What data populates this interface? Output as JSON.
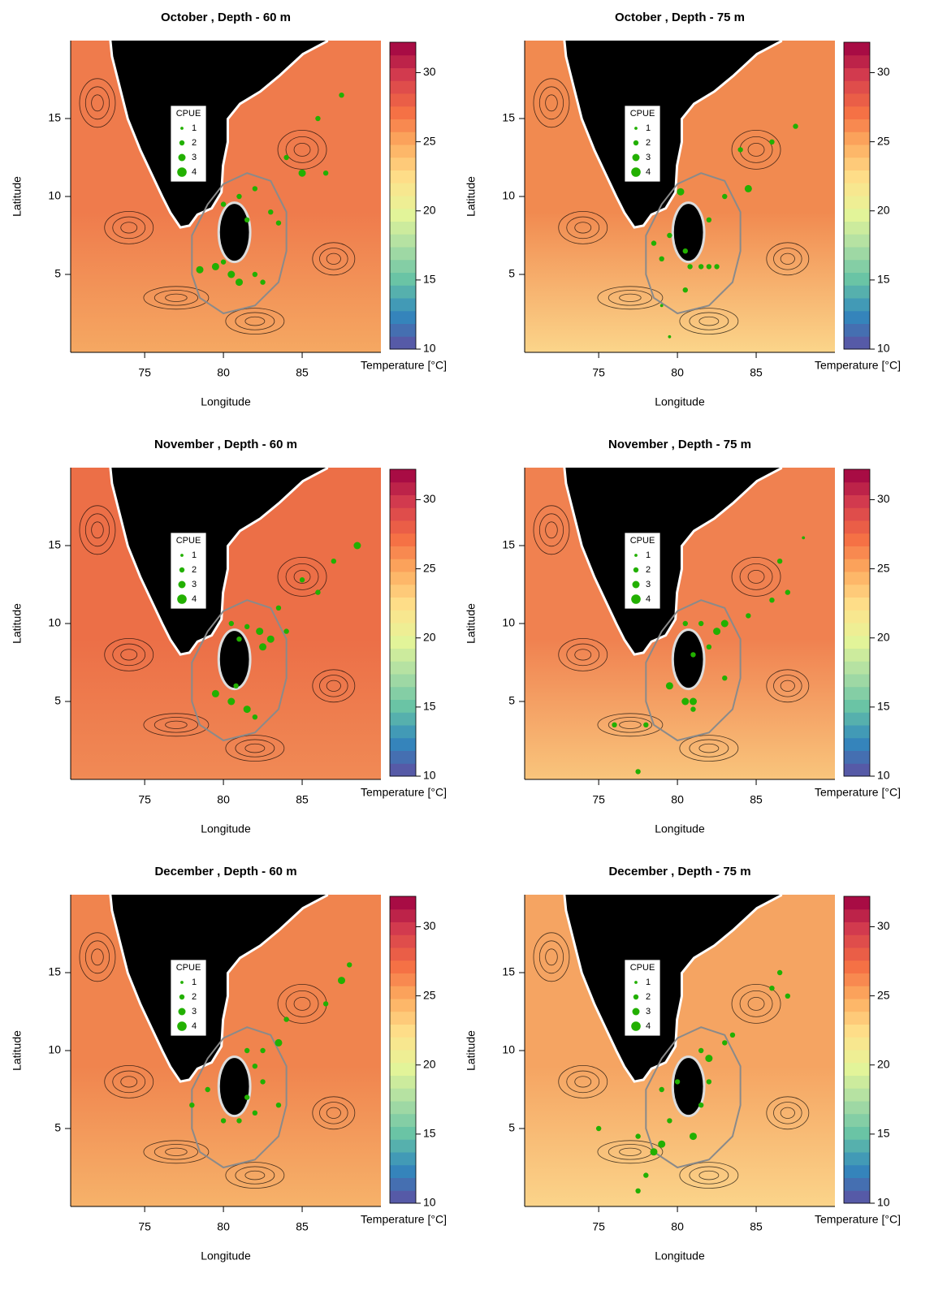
{
  "chart_data": [
    {
      "type": "map",
      "title": "October , Depth - 60 m",
      "xlabel": "Longitude",
      "ylabel": "Latitude",
      "xlim": [
        70.3,
        90
      ],
      "ylim": [
        0,
        20
      ],
      "xticks": [
        75,
        80,
        85
      ],
      "yticks": [
        5,
        10,
        15
      ],
      "colorbar": {
        "label": "Temperature [°C]",
        "lim": [
          10,
          32.2
        ],
        "ticks": [
          10,
          15,
          20,
          25,
          30
        ],
        "colors": [
          "#5e4fa2",
          "#3288bd",
          "#66c2a5",
          "#abdda4",
          "#e6f598",
          "#fee08b",
          "#fdae61",
          "#f46d43",
          "#d53e4f",
          "#9e0142"
        ]
      },
      "field_colors": [
        "#ef7b4c",
        "#f5a862"
      ],
      "point_color": "#22b000",
      "legend": {
        "title": "CPUE",
        "labels": [
          1,
          2,
          3,
          4
        ]
      },
      "points": {
        "lon": [
          80,
          81,
          82,
          83,
          81.5,
          78.5,
          79.5,
          80.5,
          81,
          80,
          82,
          83.5,
          85,
          86.5,
          84,
          87.5,
          86,
          82.5
        ],
        "lat": [
          9.5,
          10,
          10.5,
          9,
          8.5,
          5.3,
          5.5,
          5,
          4.5,
          5.8,
          5,
          8.3,
          11.5,
          11.5,
          12.5,
          16.5,
          15,
          4.5
        ],
        "cpue": [
          2,
          2,
          2,
          2,
          2,
          3,
          3,
          3,
          3,
          2,
          2,
          2,
          3,
          2,
          2,
          2,
          2,
          2
        ]
      }
    },
    {
      "type": "map",
      "title": "October , Depth - 75 m",
      "xlabel": "Longitude",
      "ylabel": "Latitude",
      "xlim": [
        70.3,
        90
      ],
      "ylim": [
        0,
        20
      ],
      "xticks": [
        75,
        80,
        85
      ],
      "yticks": [
        5,
        10,
        15
      ],
      "colorbar": {
        "label": "Temperature [°C]",
        "lim": [
          10,
          32.2
        ],
        "ticks": [
          10,
          15,
          20,
          25,
          30
        ],
        "colors": [
          "#5e4fa2",
          "#3288bd",
          "#66c2a5",
          "#abdda4",
          "#e6f598",
          "#fee08b",
          "#fdae61",
          "#f46d43",
          "#d53e4f",
          "#9e0142"
        ]
      },
      "field_colors": [
        "#f18a50",
        "#fbd58a"
      ],
      "point_color": "#22b000",
      "legend": {
        "title": "CPUE",
        "labels": [
          1,
          2,
          3,
          4
        ]
      },
      "points": {
        "lon": [
          80.2,
          80.5,
          80.8,
          81.5,
          82,
          82.5,
          79,
          79.5,
          80.5,
          79,
          79.5,
          82,
          83,
          84.5,
          86,
          87.5,
          84,
          78.5
        ],
        "lat": [
          10.3,
          6.5,
          5.5,
          5.5,
          5.5,
          5.5,
          6,
          7.5,
          4,
          3,
          1,
          8.5,
          10,
          10.5,
          13.5,
          14.5,
          13,
          7
        ],
        "cpue": [
          3,
          2,
          2,
          2,
          2,
          2,
          2,
          2,
          2,
          1,
          1,
          2,
          2,
          3,
          2,
          2,
          2,
          2
        ]
      }
    },
    {
      "type": "map",
      "title": "November , Depth - 60 m",
      "xlabel": "Longitude",
      "ylabel": "Latitude",
      "xlim": [
        70.3,
        90
      ],
      "ylim": [
        0,
        20
      ],
      "xticks": [
        75,
        80,
        85
      ],
      "yticks": [
        5,
        10,
        15
      ],
      "colorbar": {
        "label": "Temperature [°C]",
        "lim": [
          10,
          32.2
        ],
        "ticks": [
          10,
          15,
          20,
          25,
          30
        ],
        "colors": [
          "#5e4fa2",
          "#3288bd",
          "#66c2a5",
          "#abdda4",
          "#e6f598",
          "#fee08b",
          "#fdae61",
          "#f46d43",
          "#d53e4f",
          "#9e0142"
        ]
      },
      "field_colors": [
        "#ec6f47",
        "#f08a55"
      ],
      "point_color": "#22b000",
      "legend": {
        "title": "CPUE",
        "labels": [
          1,
          2,
          3,
          4
        ]
      },
      "points": {
        "lon": [
          80.5,
          81.5,
          82.3,
          83,
          82.5,
          81,
          79.5,
          80.5,
          81.5,
          80.8,
          84,
          86,
          87,
          88.5,
          85,
          83.5,
          82
        ],
        "lat": [
          10,
          9.8,
          9.5,
          9,
          8.5,
          9,
          5.5,
          5,
          4.5,
          6,
          9.5,
          12,
          14,
          15,
          12.8,
          11,
          4
        ],
        "cpue": [
          2,
          2,
          3,
          3,
          3,
          2,
          3,
          3,
          3,
          2,
          2,
          2,
          2,
          3,
          2,
          2,
          2
        ]
      }
    },
    {
      "type": "map",
      "title": "November , Depth - 75 m",
      "xlabel": "Longitude",
      "ylabel": "Latitude",
      "xlim": [
        70.3,
        90
      ],
      "ylim": [
        0,
        20
      ],
      "xticks": [
        75,
        80,
        85
      ],
      "yticks": [
        5,
        10,
        15
      ],
      "colorbar": {
        "label": "Temperature [°C]",
        "lim": [
          10,
          32.2
        ],
        "ticks": [
          10,
          15,
          20,
          25,
          30
        ],
        "colors": [
          "#5e4fa2",
          "#3288bd",
          "#66c2a5",
          "#abdda4",
          "#e6f598",
          "#fee08b",
          "#fdae61",
          "#f46d43",
          "#d53e4f",
          "#9e0142"
        ]
      },
      "field_colors": [
        "#f08150",
        "#f9c57c"
      ],
      "point_color": "#22b000",
      "legend": {
        "title": "CPUE",
        "labels": [
          1,
          2,
          3,
          4
        ]
      },
      "points": {
        "lon": [
          80.5,
          81.5,
          82.5,
          83,
          82,
          81,
          79.5,
          80.5,
          81,
          83,
          81,
          84.5,
          86,
          87,
          86.5,
          88,
          77.5,
          76,
          78
        ],
        "lat": [
          10,
          10,
          9.5,
          10,
          8.5,
          8,
          6,
          5,
          5,
          6.5,
          4.5,
          10.5,
          11.5,
          12,
          14,
          15.5,
          0.5,
          3.5,
          3.5
        ],
        "cpue": [
          2,
          2,
          3,
          3,
          2,
          2,
          3,
          3,
          3,
          2,
          2,
          2,
          2,
          2,
          2,
          1,
          2,
          2,
          2
        ]
      }
    },
    {
      "type": "map",
      "title": "December , Depth - 60 m",
      "xlabel": "Longitude",
      "ylabel": "Latitude",
      "xlim": [
        70.3,
        90
      ],
      "ylim": [
        0,
        20
      ],
      "xticks": [
        75,
        80,
        85
      ],
      "yticks": [
        5,
        10,
        15
      ],
      "colorbar": {
        "label": "Temperature [°C]",
        "lim": [
          10,
          32.2
        ],
        "ticks": [
          10,
          15,
          20,
          25,
          30
        ],
        "colors": [
          "#5e4fa2",
          "#3288bd",
          "#66c2a5",
          "#abdda4",
          "#e6f598",
          "#fee08b",
          "#fdae61",
          "#f46d43",
          "#d53e4f",
          "#9e0142"
        ]
      },
      "field_colors": [
        "#f0844e",
        "#f6b26a"
      ],
      "point_color": "#22b000",
      "legend": {
        "title": "CPUE",
        "labels": [
          1,
          2,
          3,
          4
        ]
      },
      "points": {
        "lon": [
          81.5,
          82.5,
          83.5,
          82,
          82.5,
          81.5,
          80,
          81,
          78,
          79,
          82,
          87.5,
          88,
          86.5,
          84,
          83.5
        ],
        "lat": [
          10,
          10,
          10.5,
          9,
          8,
          7,
          5.5,
          5.5,
          6.5,
          7.5,
          6,
          14.5,
          15.5,
          13,
          12,
          6.5
        ],
        "cpue": [
          2,
          2,
          3,
          2,
          2,
          2,
          2,
          2,
          2,
          2,
          2,
          3,
          2,
          2,
          2,
          2
        ]
      }
    },
    {
      "type": "map",
      "title": "December , Depth - 75 m",
      "xlabel": "Longitude",
      "ylabel": "Latitude",
      "xlim": [
        70.3,
        90
      ],
      "ylim": [
        0,
        20
      ],
      "xticks": [
        75,
        80,
        85
      ],
      "yticks": [
        5,
        10,
        15
      ],
      "colorbar": {
        "label": "Temperature [°C]",
        "lim": [
          10,
          32.2
        ],
        "ticks": [
          10,
          15,
          20,
          25,
          30
        ],
        "colors": [
          "#5e4fa2",
          "#3288bd",
          "#66c2a5",
          "#abdda4",
          "#e6f598",
          "#fee08b",
          "#fdae61",
          "#f46d43",
          "#d53e4f",
          "#9e0142"
        ]
      },
      "field_colors": [
        "#f5a462",
        "#fbd48a"
      ],
      "point_color": "#22b000",
      "legend": {
        "title": "CPUE",
        "labels": [
          1,
          2,
          3,
          4
        ]
      },
      "points": {
        "lon": [
          81.5,
          82,
          83,
          82,
          81.5,
          81,
          79,
          78.5,
          77.5,
          78,
          77.5,
          79.5,
          79,
          80,
          83.5,
          86,
          86.5,
          87,
          75
        ],
        "lat": [
          10,
          9.5,
          10.5,
          8,
          6.5,
          4.5,
          4,
          3.5,
          4.5,
          2,
          1,
          5.5,
          7.5,
          8,
          11,
          14,
          15,
          13.5,
          5
        ],
        "cpue": [
          2,
          3,
          2,
          2,
          2,
          3,
          3,
          3,
          2,
          2,
          2,
          2,
          2,
          2,
          2,
          2,
          2,
          2,
          2
        ]
      }
    }
  ]
}
